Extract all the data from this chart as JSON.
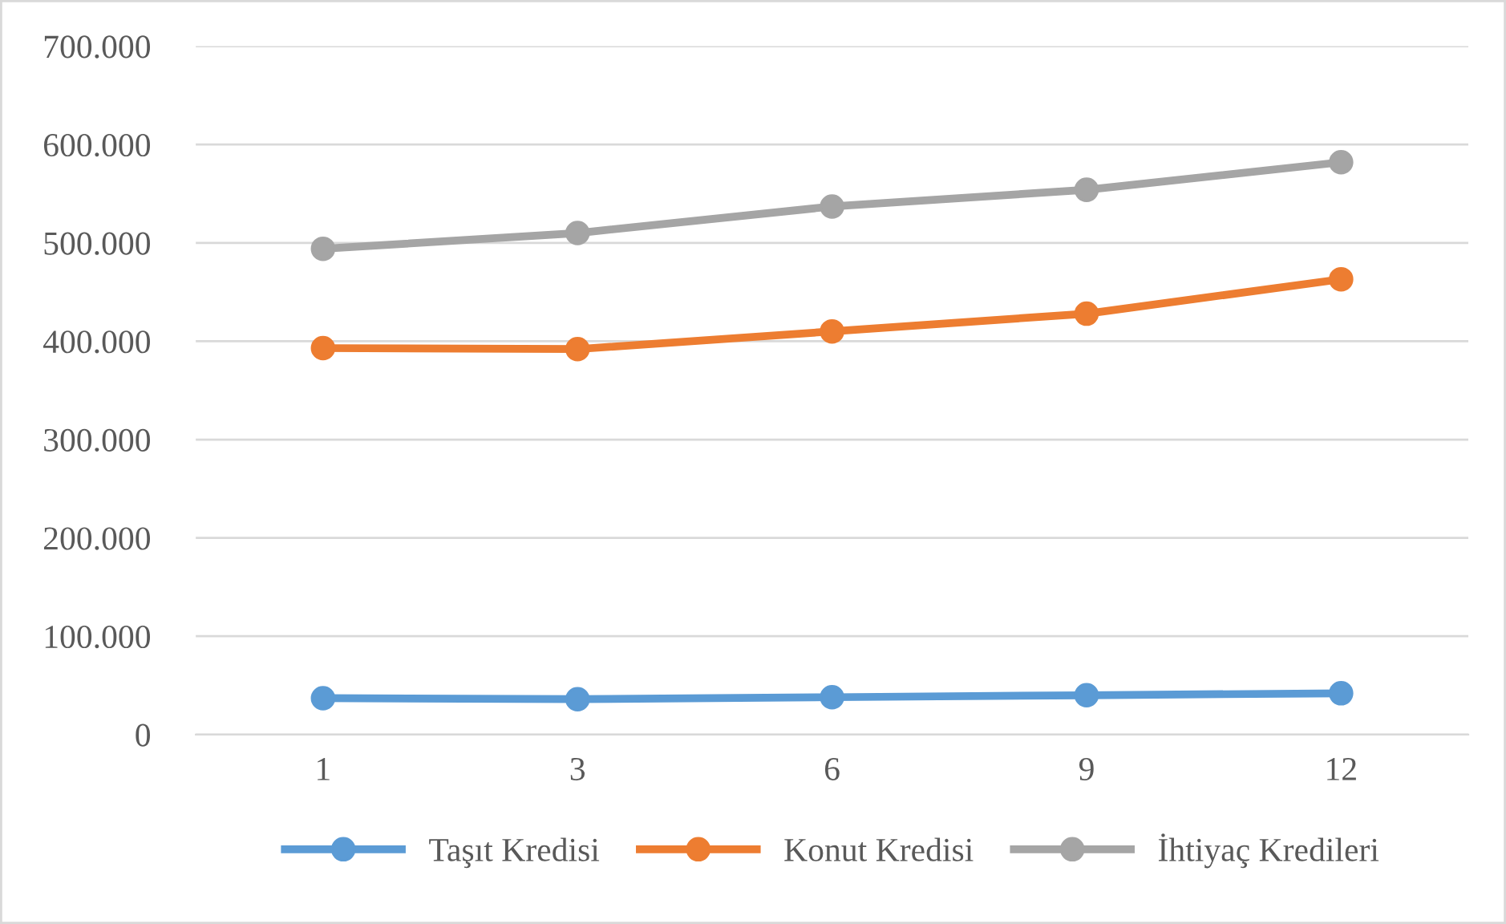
{
  "chart_data": {
    "type": "line",
    "categories": [
      "1",
      "3",
      "6",
      "9",
      "12"
    ],
    "series": [
      {
        "name": "Taşıt Kredisi",
        "color": "#5b9bd5",
        "values": [
          37000,
          36000,
          38000,
          40000,
          42000
        ]
      },
      {
        "name": "Konut Kredisi",
        "color": "#ed7d31",
        "values": [
          393000,
          392000,
          410000,
          428000,
          463000
        ]
      },
      {
        "name": "İhtiyaç Kredileri",
        "color": "#a5a5a5",
        "values": [
          494000,
          510000,
          537000,
          554000,
          582000
        ]
      }
    ],
    "ylim": [
      0,
      700000
    ],
    "yticks": [
      {
        "value": 0,
        "label": "0"
      },
      {
        "value": 100000,
        "label": "100.000"
      },
      {
        "value": 200000,
        "label": "200.000"
      },
      {
        "value": 300000,
        "label": "300.000"
      },
      {
        "value": 400000,
        "label": "400.000"
      },
      {
        "value": 500000,
        "label": "500.000"
      },
      {
        "value": 600000,
        "label": "600.000"
      },
      {
        "value": 700000,
        "label": "700.000"
      }
    ],
    "grid": "y",
    "legend": "bottom",
    "marker": "circle",
    "line_style": "solid"
  }
}
